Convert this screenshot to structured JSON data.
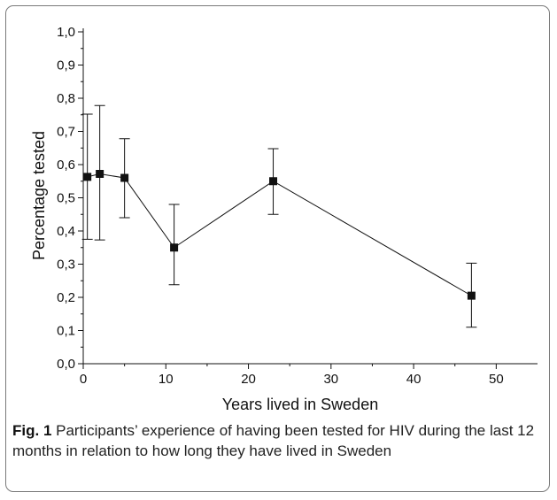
{
  "chart_data": {
    "type": "line",
    "title": "",
    "xlabel": "Years lived in Sweden",
    "ylabel": "Percentage tested",
    "xlim": [
      0,
      55
    ],
    "ylim": [
      0.0,
      1.0
    ],
    "x_ticks": [
      0,
      10,
      20,
      30,
      40,
      50
    ],
    "y_ticks": [
      "0,0",
      "0,1",
      "0,2",
      "0,3",
      "0,4",
      "0,5",
      "0,6",
      "0,7",
      "0,8",
      "0,9",
      "1,0"
    ],
    "grid": false,
    "legend": "none",
    "series": [
      {
        "marker": "square",
        "color": "#111111",
        "x": [
          0.5,
          2,
          5,
          11,
          23,
          47
        ],
        "y": [
          0.563,
          0.572,
          0.56,
          0.35,
          0.55,
          0.205
        ],
        "err_low": [
          0.375,
          0.373,
          0.44,
          0.238,
          0.45,
          0.11
        ],
        "err_high": [
          0.752,
          0.778,
          0.678,
          0.48,
          0.648,
          0.303
        ]
      }
    ]
  },
  "caption": {
    "label": "Fig. 1",
    "text": " Participants’ experience of having been tested for HIV during the last 12 months in relation to how long they have lived in Sweden"
  }
}
